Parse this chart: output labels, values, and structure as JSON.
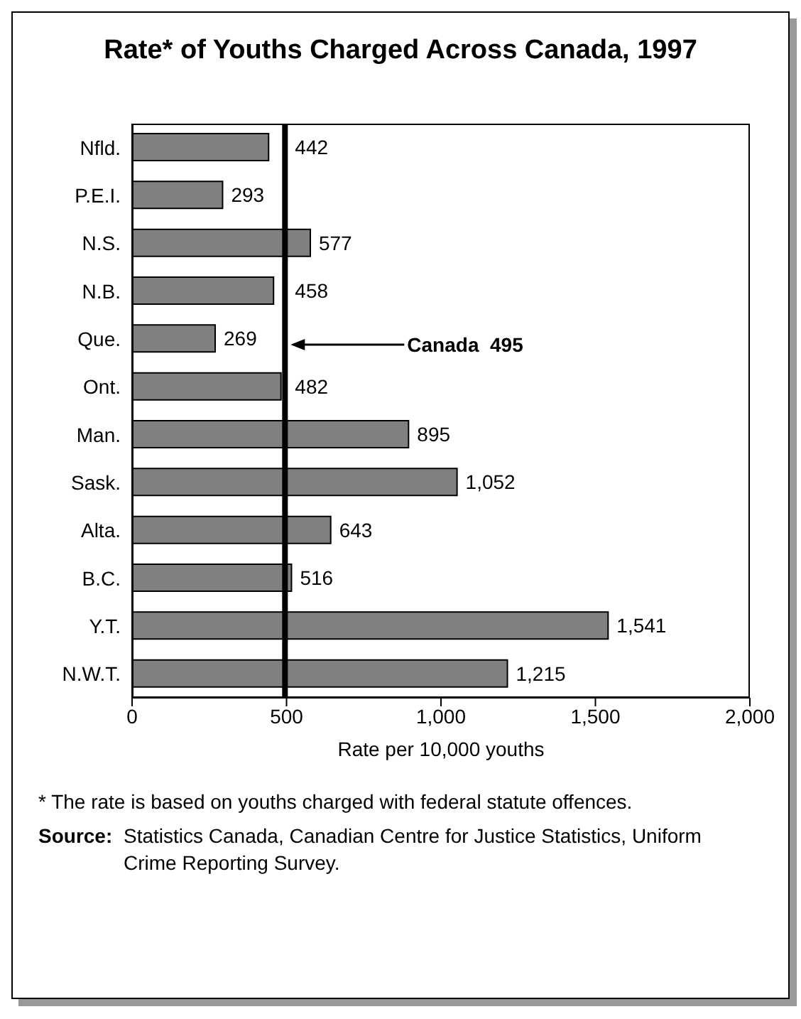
{
  "chart_data": {
    "type": "bar",
    "orientation": "horizontal",
    "title": "Rate* of Youths Charged Across Canada, 1997",
    "categories": [
      "Nfld.",
      "P.E.I.",
      "N.S.",
      "N.B.",
      "Que.",
      "Ont.",
      "Man.",
      "Sask.",
      "Alta.",
      "B.C.",
      "Y.T.",
      "N.W.T."
    ],
    "values": [
      442,
      293,
      577,
      458,
      269,
      482,
      895,
      1052,
      643,
      516,
      1541,
      1215
    ],
    "color": "#808080",
    "value_labels": [
      "442",
      "293",
      "577",
      "458",
      "269",
      "482",
      "895",
      "1,052",
      "643",
      "516",
      "1,541",
      "1,215"
    ],
    "xlabel": "Rate per 10,000 youths",
    "xlim": [
      0,
      2000
    ],
    "xticks": [
      0,
      {
        "value": 500,
        "label": "500"
      },
      {
        "value": 1000,
        "label": "1,000"
      },
      {
        "value": 1500,
        "label": "1,500"
      },
      {
        "value": 2000,
        "label": "2,000"
      }
    ],
    "ref_lines": [
      {
        "axis": "x",
        "value": 495,
        "label": "Canada  495",
        "color": "#000000"
      }
    ],
    "annotations": [
      "* The rate is based on youths charged with federal statute offences.",
      "Source: Statistics Canada, Canadian Centre for Justice Statistics, Uniform Crime Reporting Survey."
    ]
  }
}
